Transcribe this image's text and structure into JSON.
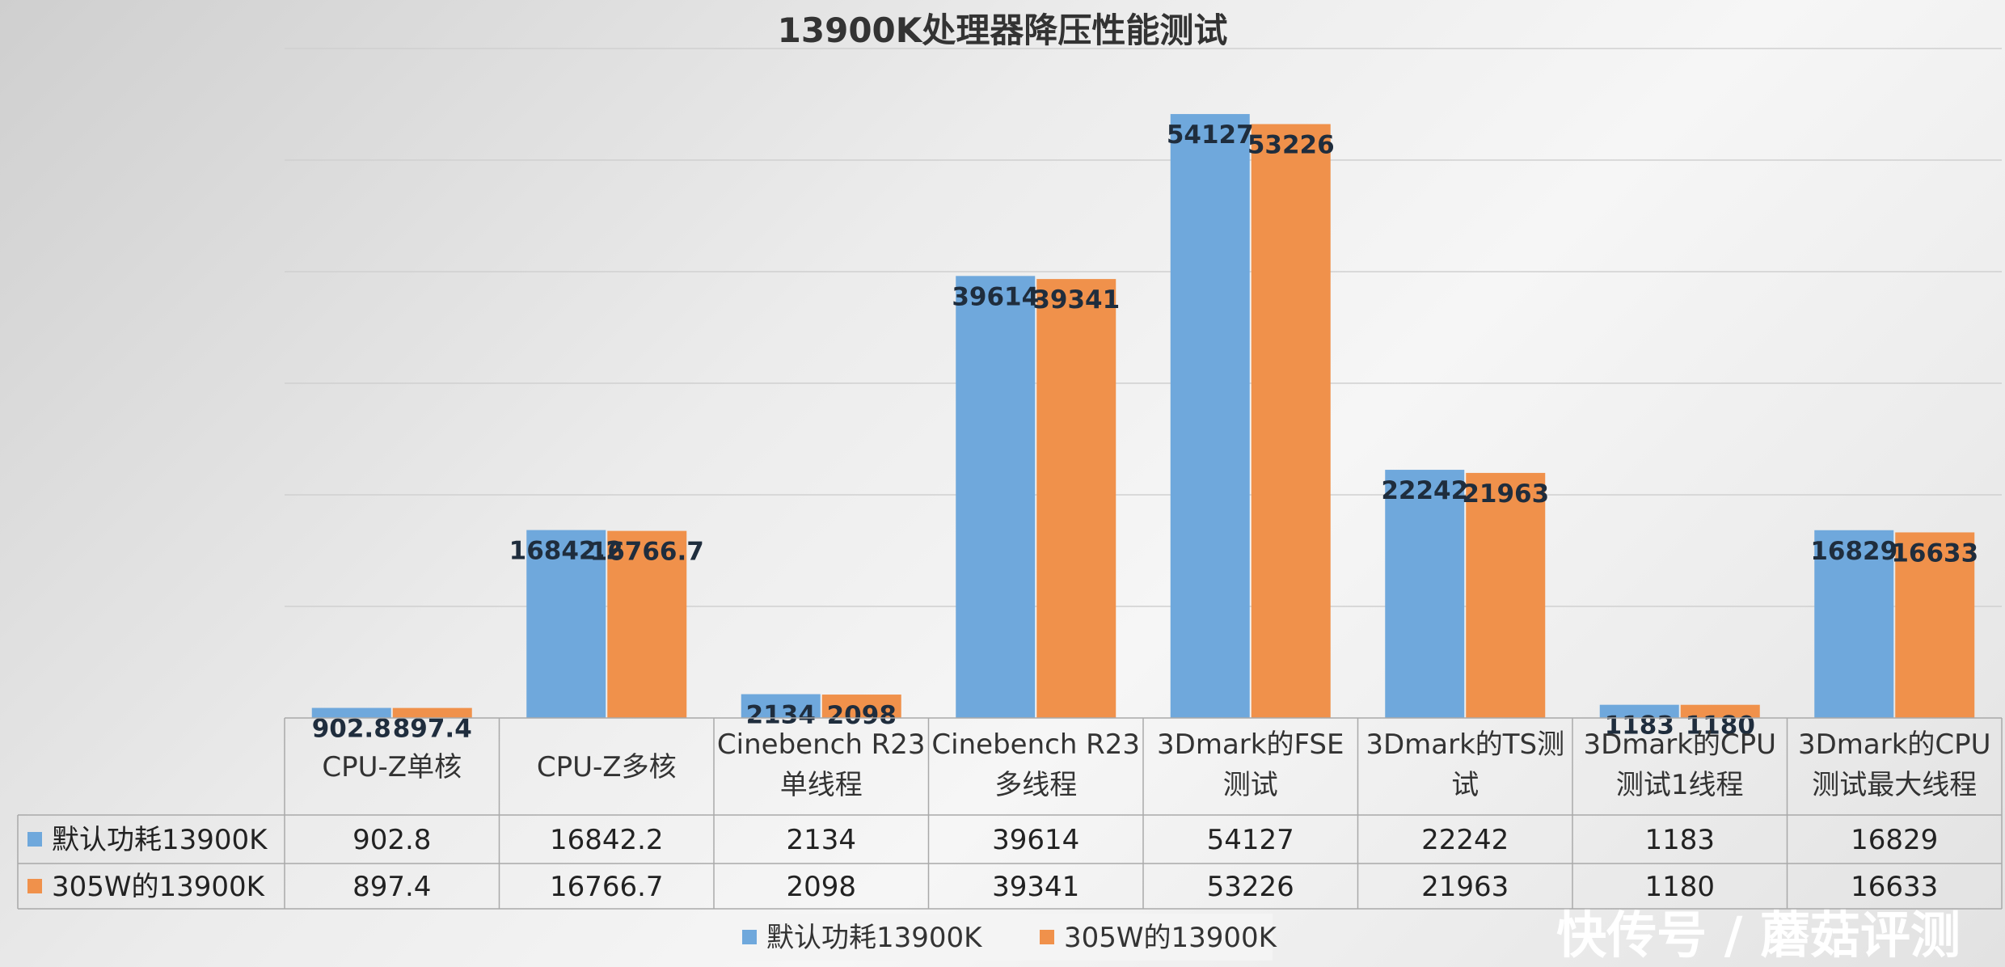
{
  "chart_data": {
    "type": "bar",
    "title": "13900K处理器降压性能测试",
    "categories": [
      [
        "CPU-Z单核"
      ],
      [
        "CPU-Z多核"
      ],
      [
        "Cinebench R23",
        "单线程"
      ],
      [
        "Cinebench R23",
        "多线程"
      ],
      [
        "3Dmark的FSE",
        "测试"
      ],
      [
        "3Dmark的TS测",
        "试"
      ],
      [
        "3Dmark的CPU",
        "测试1线程"
      ],
      [
        "3Dmark的CPU",
        "测试最大线程"
      ]
    ],
    "series": [
      {
        "name": "默认功耗13900K",
        "color": "#6fa8dc",
        "values": [
          902.8,
          16842.2,
          2134,
          39614,
          54127,
          22242,
          1183,
          16829
        ],
        "labels": [
          "902.8",
          "16842.2",
          "2134",
          "39614",
          "54127",
          "22242",
          "1183",
          "16829"
        ]
      },
      {
        "name": "305W的13900K",
        "color": "#f0914b",
        "values": [
          897.4,
          16766.7,
          2098,
          39341,
          53226,
          21963,
          1180,
          16633
        ],
        "labels": [
          "897.4",
          "16766.7",
          "2098",
          "39341",
          "53226",
          "21963",
          "1180",
          "16633"
        ]
      }
    ],
    "ylim": [
      0,
      60000
    ],
    "grid": true,
    "legend": "bottom",
    "data_table": true
  },
  "watermark": "快传号 / 蘑菇评测"
}
